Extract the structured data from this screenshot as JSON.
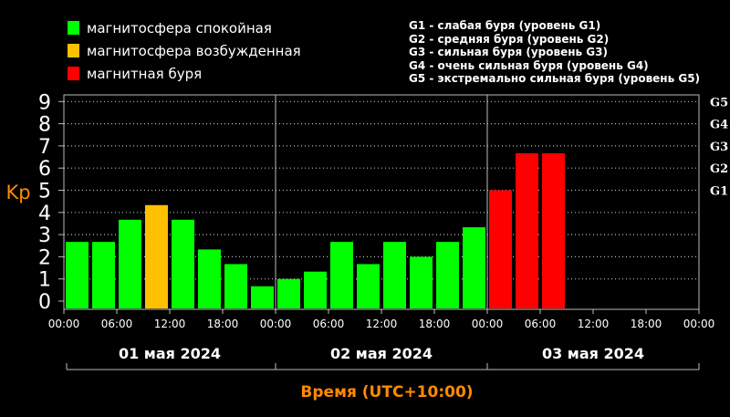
{
  "legend": {
    "items": [
      {
        "label": "магнитосфера спокойная",
        "color": "#00ff00"
      },
      {
        "label": "магнитосфера возбужденная",
        "color": "#ffc000"
      },
      {
        "label": "магнитная буря",
        "color": "#ff0000"
      }
    ],
    "g_levels": [
      "G1 - слабая буря (уровень G1)",
      "G2 - средняя буря (уровень G2)",
      "G3 - сильная буря (уровень G3)",
      "G4 - очень сильная буря (уровень G4)",
      "G5 - экстремально сильная буря (уровень G5)"
    ]
  },
  "chart_data": {
    "type": "bar",
    "ylabel": "Kp",
    "xlabel": "Время (UTC+10:00)",
    "ylim": [
      0,
      9
    ],
    "yticks": [
      "0",
      "1",
      "2",
      "3",
      "4",
      "5",
      "6",
      "7",
      "8",
      "9"
    ],
    "right_ticks": [
      {
        "label": "G1",
        "y": 5
      },
      {
        "label": "G2",
        "y": 6
      },
      {
        "label": "G3",
        "y": 7
      },
      {
        "label": "G4",
        "y": 8
      },
      {
        "label": "G5",
        "y": 9
      }
    ],
    "xticks": [
      "00:00",
      "06:00",
      "12:00",
      "18:00",
      "00:00",
      "06:00",
      "12:00",
      "18:00",
      "00:00",
      "06:00",
      "12:00",
      "18:00",
      "00:00"
    ],
    "days": [
      "01 мая 2024",
      "02 мая 2024",
      "03 мая 2024"
    ],
    "grid": true,
    "colors": {
      "quiet": "#00ff00",
      "active": "#ffc000",
      "storm": "#ff0000"
    },
    "bars": [
      {
        "t": "01 00:00",
        "value": 2.67,
        "level": "quiet"
      },
      {
        "t": "01 03:00",
        "value": 2.67,
        "level": "quiet"
      },
      {
        "t": "01 06:00",
        "value": 3.67,
        "level": "quiet"
      },
      {
        "t": "01 09:00",
        "value": 4.33,
        "level": "active"
      },
      {
        "t": "01 12:00",
        "value": 3.67,
        "level": "quiet"
      },
      {
        "t": "01 15:00",
        "value": 2.33,
        "level": "quiet"
      },
      {
        "t": "01 18:00",
        "value": 1.67,
        "level": "quiet"
      },
      {
        "t": "01 21:00",
        "value": 0.67,
        "level": "quiet"
      },
      {
        "t": "02 00:00",
        "value": 1.0,
        "level": "quiet"
      },
      {
        "t": "02 03:00",
        "value": 1.33,
        "level": "quiet"
      },
      {
        "t": "02 06:00",
        "value": 2.67,
        "level": "quiet"
      },
      {
        "t": "02 09:00",
        "value": 1.67,
        "level": "quiet"
      },
      {
        "t": "02 12:00",
        "value": 2.67,
        "level": "quiet"
      },
      {
        "t": "02 15:00",
        "value": 2.0,
        "level": "quiet"
      },
      {
        "t": "02 18:00",
        "value": 2.67,
        "level": "quiet"
      },
      {
        "t": "02 21:00",
        "value": 3.33,
        "level": "quiet"
      },
      {
        "t": "03 00:00",
        "value": 5.0,
        "level": "storm"
      },
      {
        "t": "03 03:00",
        "value": 6.67,
        "level": "storm"
      },
      {
        "t": "03 06:00",
        "value": 6.67,
        "level": "storm"
      }
    ]
  }
}
